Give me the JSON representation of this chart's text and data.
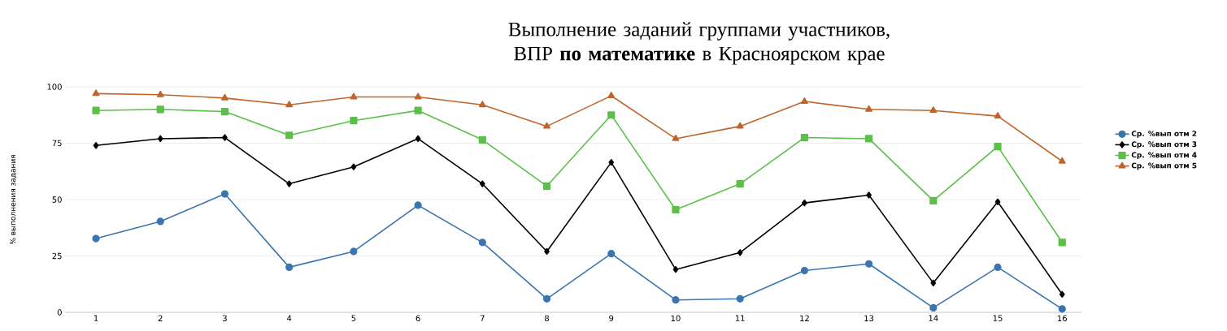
{
  "chart_data": {
    "type": "line",
    "title": "Выполнение заданий группами участников, ВПР **по математике** в Красноярском крае",
    "ylabel": "% выполнения задания",
    "categories": [
      "1",
      "2",
      "3",
      "4",
      "5",
      "6",
      "7",
      "8",
      "9",
      "10",
      "11",
      "12",
      "13",
      "14",
      "15",
      "16"
    ],
    "series": [
      {
        "name": "Ср. %вып отм 2",
        "color": "#3a75b0",
        "marker": "circle",
        "values": [
          32.7,
          40.3,
          52.5,
          20,
          27,
          47.5,
          31,
          6,
          26,
          5.5,
          6,
          18.5,
          21.5,
          2,
          20,
          1.5
        ]
      },
      {
        "name": "Ср. %вып отм 3",
        "color": "#000000",
        "marker": "diamond",
        "values": [
          74,
          77,
          77.5,
          57,
          64.5,
          77,
          57,
          27,
          66.5,
          19,
          26.5,
          48.5,
          52,
          13,
          49,
          8
        ]
      },
      {
        "name": "Ср. %вып отм 4",
        "color": "#5cbf4a",
        "marker": "square",
        "values": [
          89.5,
          90,
          89,
          78.5,
          85,
          89.5,
          76.5,
          56,
          87.5,
          45.5,
          57,
          77.5,
          77,
          49.5,
          73.5,
          31
        ]
      },
      {
        "name": "Ср. %вып отм 5",
        "color": "#c0642a",
        "marker": "triangle",
        "values": [
          97,
          96.5,
          95,
          92,
          95.5,
          95.5,
          92,
          82.5,
          96,
          77,
          82.5,
          93.5,
          90,
          89.5,
          87,
          67
        ]
      }
    ],
    "ylim": [
      0,
      100
    ],
    "yticks": [
      0,
      25,
      50,
      75,
      100
    ],
    "grid": "y",
    "legend": "right",
    "line_style": "solid"
  }
}
